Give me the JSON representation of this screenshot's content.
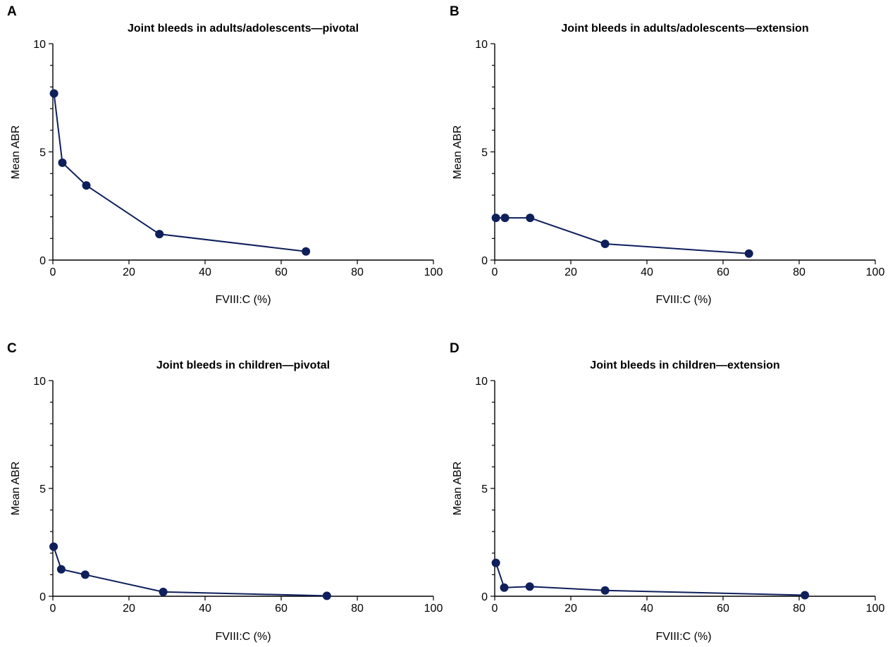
{
  "series_color": "#0f1f5c",
  "chart_data": [
    {
      "panel": "A",
      "type": "line",
      "title": "Joint bleeds in adults/adolescents—pivotal",
      "xlabel": "FVIII:C (%)",
      "ylabel": "Mean ABR",
      "xlim": [
        0,
        100
      ],
      "ylim": [
        0,
        10
      ],
      "xticks": [
        0,
        20,
        40,
        60,
        80,
        100
      ],
      "yticks": [
        0,
        5,
        10
      ],
      "yminor": [
        1,
        2,
        3,
        4,
        6,
        7,
        8,
        9
      ],
      "grid": false,
      "x": [
        0.3,
        2.5,
        8.8,
        28,
        66.5
      ],
      "y": [
        7.7,
        4.5,
        3.45,
        1.2,
        0.4
      ]
    },
    {
      "panel": "B",
      "type": "line",
      "title": "Joint bleeds in adults/adolescents—extension",
      "xlabel": "FVIII:C (%)",
      "ylabel": "Mean ABR",
      "xlim": [
        0,
        100
      ],
      "ylim": [
        0,
        10
      ],
      "xticks": [
        0,
        20,
        40,
        60,
        80,
        100
      ],
      "yticks": [
        0,
        5,
        10
      ],
      "yminor": [
        1,
        2,
        3,
        4,
        6,
        7,
        8,
        9
      ],
      "grid": false,
      "x": [
        0.3,
        2.7,
        9.3,
        29,
        66.8
      ],
      "y": [
        1.95,
        1.95,
        1.95,
        0.75,
        0.3
      ]
    },
    {
      "panel": "C",
      "type": "line",
      "title": "Joint bleeds in children—pivotal",
      "xlabel": "FVIII:C (%)",
      "ylabel": "Mean ABR",
      "xlim": [
        0,
        100
      ],
      "ylim": [
        0,
        10
      ],
      "xticks": [
        0,
        20,
        40,
        60,
        80,
        100
      ],
      "yticks": [
        0,
        5,
        10
      ],
      "yminor": [
        1,
        2,
        3,
        4,
        6,
        7,
        8,
        9
      ],
      "grid": false,
      "x": [
        0.2,
        2.2,
        8.5,
        29,
        72
      ],
      "y": [
        2.3,
        1.25,
        1.0,
        0.2,
        0.02
      ]
    },
    {
      "panel": "D",
      "type": "line",
      "title": "Joint bleeds in children—extension",
      "xlabel": "FVIII:C (%)",
      "ylabel": "Mean ABR",
      "xlim": [
        0,
        100
      ],
      "ylim": [
        0,
        10
      ],
      "xticks": [
        0,
        20,
        40,
        60,
        80,
        100
      ],
      "yticks": [
        0,
        5,
        10
      ],
      "yminor": [
        1,
        2,
        3,
        4,
        6,
        7,
        8,
        9
      ],
      "grid": false,
      "x": [
        0.3,
        2.5,
        9.2,
        29,
        81.5
      ],
      "y": [
        1.55,
        0.4,
        0.45,
        0.27,
        0.05
      ]
    }
  ]
}
